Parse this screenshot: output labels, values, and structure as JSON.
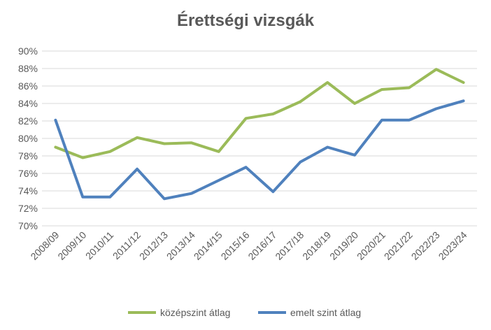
{
  "chart_data": {
    "type": "line",
    "title": "Érettségi vizsgák",
    "xlabel": "",
    "ylabel": "",
    "categories": [
      "2008/09",
      "2009/10",
      "2010/11",
      "2011/12",
      "2012/13",
      "2013/14",
      "2014/15",
      "2015/16",
      "2016/17",
      "2017/18",
      "2018/19",
      "2019/20",
      "2020/21",
      "2021/22",
      "2022/23",
      "2023/24"
    ],
    "ylim": [
      70,
      90
    ],
    "yticks": [
      "70%",
      "72%",
      "74%",
      "76%",
      "78%",
      "80%",
      "82%",
      "84%",
      "86%",
      "88%",
      "90%"
    ],
    "grid": true,
    "legend_position": "bottom",
    "series": [
      {
        "name": "középszint átlag",
        "color": "#9bbb59",
        "values": [
          79.0,
          77.8,
          78.5,
          80.1,
          79.4,
          79.5,
          78.5,
          82.3,
          82.8,
          84.2,
          86.4,
          84.0,
          85.6,
          85.8,
          87.9,
          86.4
        ]
      },
      {
        "name": "emelt szint átlag",
        "color": "#4f81bd",
        "values": [
          82.1,
          73.3,
          73.3,
          76.5,
          73.1,
          73.7,
          75.2,
          76.7,
          73.9,
          77.3,
          79.0,
          78.1,
          82.1,
          82.1,
          83.4,
          84.3
        ]
      }
    ]
  }
}
